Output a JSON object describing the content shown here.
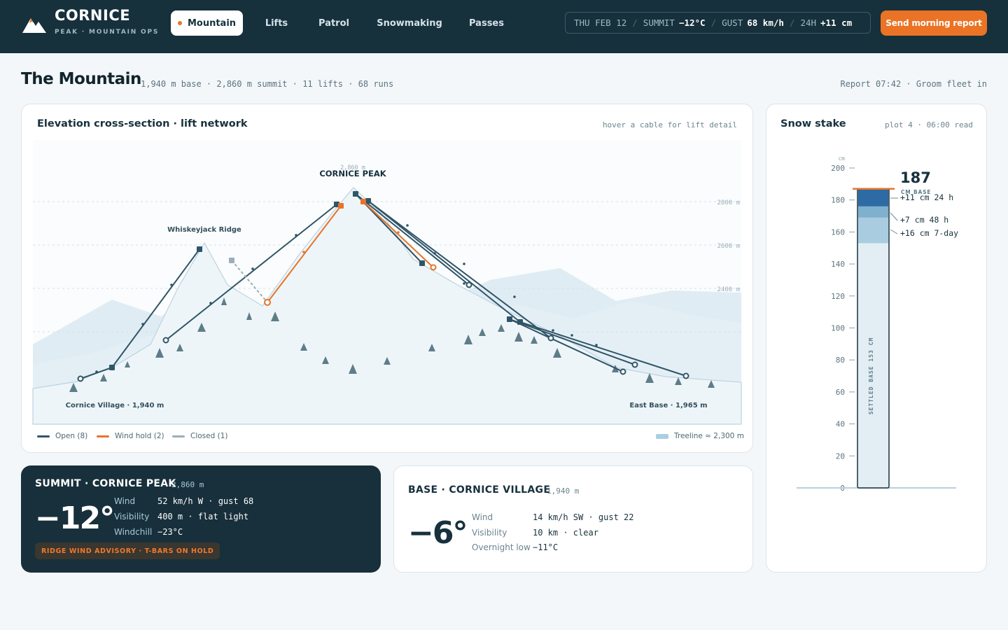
{
  "app": {
    "brand": "CORNICE",
    "brand_sub": "PEAK · MOUNTAIN OPS",
    "nav": [
      "Mountain",
      "Lifts",
      "Patrol",
      "Snowmaking",
      "Passes"
    ],
    "conditions": {
      "date": "THU FEB 12",
      "summit_label": "SUMMIT",
      "summit_value": "−12°C",
      "gust_label": "GUST",
      "gust_value": "68 km/h",
      "new_label": "24H",
      "new_value": "+11 cm"
    },
    "report_button": "Send morning report"
  },
  "page": {
    "title": "The Mountain",
    "subtitle": "1,940 m base · 2,860 m summit · 11 lifts · 68 runs",
    "right": "Report 07:42 · Groom fleet in"
  },
  "cross_section": {
    "title": "Elevation cross-section · lift network",
    "hint": "hover a cable for lift detail",
    "peak_name": "CORNICE PEAK",
    "peak_elev": "2,860 m",
    "ridge_name": "Whiskeyjack Ridge",
    "village_label": "Cornice Village · 1,940 m",
    "east_label": "East Base · 1,965 m",
    "grid_labels": [
      "2800 m",
      "2600 m",
      "2400 m"
    ],
    "legend": {
      "open": "Open (8)",
      "hold": "Wind hold (2)",
      "closed": "Closed (1)",
      "treeline": "Treeline ≈ 2,300 m"
    },
    "colors": {
      "open": "#2f5567",
      "hold": "#e8742a",
      "closed": "#9aafb9",
      "treeline": "#a9cfe2"
    }
  },
  "snow_stake": {
    "title": "Snow stake",
    "hint": "plot 4 · 06:00 read",
    "unit": "cm",
    "total": "187",
    "total_label": "CM BASE",
    "axis_ticks": [
      "200",
      "180",
      "160",
      "140",
      "120",
      "100",
      "80",
      "60",
      "40",
      "20",
      "0"
    ],
    "settled_label": "SETTLED BASE 153 CM",
    "settled_cm": 153,
    "layers": [
      {
        "label": "+11 cm 24 h",
        "cm": 11
      },
      {
        "label": "+7 cm 48 h",
        "cm": 7
      },
      {
        "label": "+16 cm 7-day",
        "cm": 16
      }
    ]
  },
  "summit": {
    "title": "SUMMIT · CORNICE PEAK",
    "elev": "2,860 m",
    "temp": "−12°",
    "rows": [
      {
        "label": "Wind",
        "value": "52 km/h W · gust 68"
      },
      {
        "label": "Visibility",
        "value": "400 m · flat light"
      },
      {
        "label": "Windchill",
        "value": "−23°C"
      }
    ],
    "advisory": "RIDGE WIND ADVISORY · T-BARS ON HOLD"
  },
  "base": {
    "title": "BASE · CORNICE VILLAGE",
    "elev": "1,940 m",
    "temp": "−6°",
    "rows": [
      {
        "label": "Wind",
        "value": "14 km/h SW · gust 22"
      },
      {
        "label": "Visibility",
        "value": "10 km · clear"
      },
      {
        "label": "Overnight low",
        "value": "−11°C"
      }
    ]
  }
}
